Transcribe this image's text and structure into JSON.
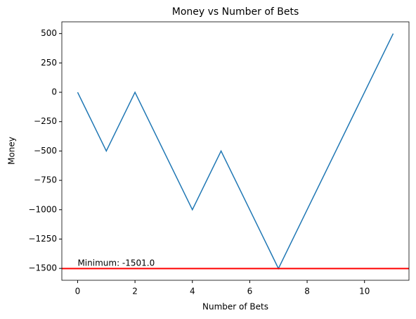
{
  "chart_data": {
    "type": "line",
    "title": "Money vs Number of Bets",
    "xlabel": "Number of Bets",
    "ylabel": "Money",
    "x": [
      0,
      1,
      2,
      3,
      4,
      5,
      6,
      7,
      8,
      9,
      10,
      11
    ],
    "series": [
      {
        "name": "Money",
        "color": "#1f77b4",
        "values": [
          0,
          -500,
          0,
          -500,
          -1000,
          -500,
          -1000,
          -1501,
          -1000,
          -500,
          0,
          500
        ]
      }
    ],
    "xlim": [
      -0.55,
      11.55
    ],
    "ylim": [
      -1601,
      600
    ],
    "xticks": [
      0,
      2,
      4,
      6,
      8,
      10
    ],
    "yticks": [
      {
        "value": 500,
        "label": "500"
      },
      {
        "value": 250,
        "label": "250"
      },
      {
        "value": 0,
        "label": "0"
      },
      {
        "value": -250,
        "label": "−250"
      },
      {
        "value": -500,
        "label": "−500"
      },
      {
        "value": -750,
        "label": "−750"
      },
      {
        "value": -1000,
        "label": "−1000"
      },
      {
        "value": -1250,
        "label": "−1250"
      },
      {
        "value": -1500,
        "label": "−1500"
      }
    ],
    "hline": {
      "value": -1501,
      "color": "#ff0000",
      "label": "Minimum: -1501.0"
    },
    "grid": false
  }
}
